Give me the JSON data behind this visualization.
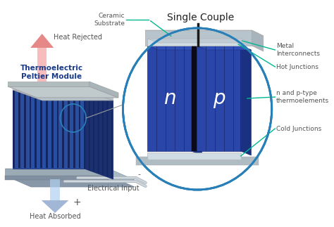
{
  "title": "Single Couple",
  "bg_color": "#ffffff",
  "module_label": "Thermoelectric\nPeltier Module",
  "heat_rejected": "Heat Rejected",
  "heat_absorbed": "Heat Absorbed",
  "electrical_input": "Electrical Input",
  "ceramic_substrate": "Ceramic\nSubstrate",
  "metal_interconnects": "Metal\nInterconnects",
  "hot_junctions": "Hot Junctions",
  "np_thermoelements": "n and p-type\nthermoelements",
  "cold_junctions": "Cold Junctions",
  "n_label": "n",
  "p_label": "p",
  "minus_label": "-",
  "plus_label": "+",
  "module_color": "#2b4fa0",
  "module_dark": "#1a3070",
  "module_darker": "#152560",
  "module_top_color": "#b8c4cc",
  "module_base_color": "#9aabb5",
  "single_couple_color": "#1a3a8a",
  "circle_edge_color": "#2980b9",
  "annotation_color": "#00b890",
  "arrow_red_light": "#f5a0a0",
  "arrow_red_dark": "#e06060",
  "arrow_blue_light": "#b0d0f0",
  "arrow_blue_dark": "#7090c0",
  "label_color": "#555555",
  "module_label_color": "#1a3a8a",
  "title_color": "#222222"
}
